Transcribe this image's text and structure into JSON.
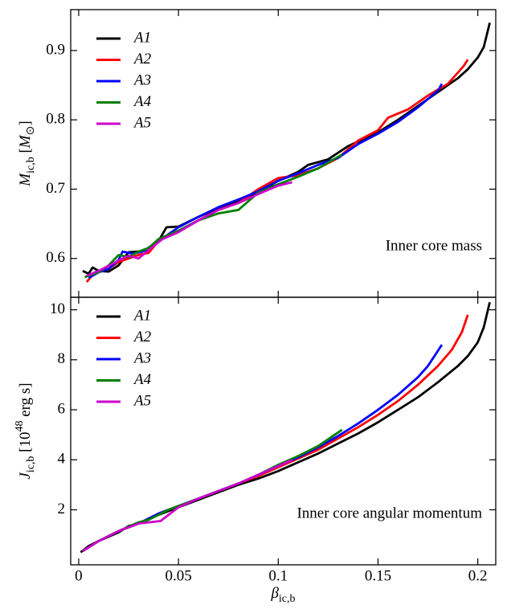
{
  "chart_data": [
    {
      "type": "line",
      "annotation": "Inner core mass",
      "ylabel": [
        {
          "text": "M",
          "font_style": "italic"
        },
        {
          "text": "ic,b",
          "baseline": "sub"
        },
        {
          "text": " ["
        },
        {
          "text": "M",
          "font_style": "italic"
        },
        {
          "text": "⊙",
          "baseline": "sub"
        },
        {
          "text": "]"
        }
      ],
      "xlim": [
        -0.004,
        0.209
      ],
      "xticks": [
        0,
        0.05,
        0.1,
        0.15,
        0.2
      ],
      "ylim": [
        0.544,
        0.959
      ],
      "yticks": [
        0.6,
        0.7,
        0.8,
        0.9
      ],
      "legend": "upper left",
      "series": [
        {
          "name": "A1",
          "color": "#000000",
          "x": [
            0.002,
            0.005,
            0.007,
            0.01,
            0.015,
            0.02,
            0.025,
            0.03,
            0.035,
            0.04,
            0.044,
            0.05,
            0.06,
            0.07,
            0.08,
            0.09,
            0.1,
            0.11,
            0.115,
            0.125,
            0.135,
            0.15,
            0.16,
            0.17,
            0.18,
            0.19,
            0.195,
            0.2,
            0.203,
            0.206
          ],
          "values": [
            0.582,
            0.578,
            0.587,
            0.582,
            0.581,
            0.59,
            0.609,
            0.61,
            0.612,
            0.625,
            0.645,
            0.646,
            0.66,
            0.672,
            0.683,
            0.695,
            0.712,
            0.725,
            0.735,
            0.743,
            0.762,
            0.782,
            0.8,
            0.82,
            0.84,
            0.86,
            0.873,
            0.89,
            0.905,
            0.94
          ]
        },
        {
          "name": "A2",
          "color": "#ff0000",
          "x": [
            0.004,
            0.008,
            0.015,
            0.02,
            0.025,
            0.03,
            0.035,
            0.04,
            0.05,
            0.06,
            0.07,
            0.08,
            0.09,
            0.1,
            0.11,
            0.12,
            0.13,
            0.14,
            0.15,
            0.155,
            0.165,
            0.175,
            0.185,
            0.19,
            0.193,
            0.195
          ],
          "values": [
            0.566,
            0.58,
            0.585,
            0.595,
            0.6,
            0.605,
            0.608,
            0.625,
            0.64,
            0.655,
            0.67,
            0.68,
            0.7,
            0.716,
            0.72,
            0.73,
            0.745,
            0.77,
            0.785,
            0.803,
            0.815,
            0.835,
            0.852,
            0.868,
            0.878,
            0.887
          ]
        },
        {
          "name": "A3",
          "color": "#0000ff",
          "x": [
            0.005,
            0.01,
            0.015,
            0.02,
            0.022,
            0.027,
            0.032,
            0.04,
            0.05,
            0.06,
            0.07,
            0.08,
            0.09,
            0.1,
            0.11,
            0.12,
            0.13,
            0.14,
            0.15,
            0.16,
            0.17,
            0.18,
            0.182
          ],
          "values": [
            0.572,
            0.58,
            0.585,
            0.598,
            0.61,
            0.607,
            0.61,
            0.625,
            0.645,
            0.66,
            0.674,
            0.685,
            0.697,
            0.712,
            0.723,
            0.735,
            0.745,
            0.765,
            0.78,
            0.797,
            0.818,
            0.842,
            0.852
          ]
        },
        {
          "name": "A4",
          "color": "#008000",
          "x": [
            0.003,
            0.01,
            0.015,
            0.02,
            0.025,
            0.03,
            0.035,
            0.04,
            0.05,
            0.06,
            0.07,
            0.08,
            0.09,
            0.1,
            0.11,
            0.12,
            0.132
          ],
          "values": [
            0.573,
            0.58,
            0.59,
            0.605,
            0.602,
            0.61,
            0.615,
            0.628,
            0.64,
            0.655,
            0.665,
            0.67,
            0.695,
            0.707,
            0.718,
            0.73,
            0.75
          ]
        },
        {
          "name": "A5",
          "color": "#cc00cc",
          "x": [
            0.004,
            0.01,
            0.02,
            0.025,
            0.03,
            0.035,
            0.042,
            0.05,
            0.06,
            0.07,
            0.08,
            0.09,
            0.1,
            0.107
          ],
          "values": [
            0.575,
            0.582,
            0.597,
            0.604,
            0.6,
            0.612,
            0.628,
            0.638,
            0.655,
            0.67,
            0.68,
            0.693,
            0.705,
            0.71
          ]
        }
      ]
    },
    {
      "type": "line",
      "annotation": "Inner core angular momentum",
      "ylabel": [
        {
          "text": "J",
          "font_style": "italic"
        },
        {
          "text": "ic,b",
          "baseline": "sub"
        },
        {
          "text": " [10"
        },
        {
          "text": "48",
          "baseline": "super"
        },
        {
          "text": " erg s]"
        }
      ],
      "xlabel": [
        {
          "text": "β",
          "font_style": "italic"
        },
        {
          "text": "ic,b",
          "baseline": "sub"
        }
      ],
      "xlim": [
        -0.004,
        0.209
      ],
      "xticks": [
        0,
        0.05,
        0.1,
        0.15,
        0.2
      ],
      "ylim": [
        -0.2,
        10.5
      ],
      "yticks": [
        2,
        4,
        6,
        8,
        10
      ],
      "legend": "upper left",
      "series": [
        {
          "name": "A1",
          "color": "#000000",
          "x": [
            0.001,
            0.005,
            0.01,
            0.02,
            0.025,
            0.03,
            0.04,
            0.05,
            0.06,
            0.07,
            0.08,
            0.09,
            0.1,
            0.11,
            0.12,
            0.13,
            0.14,
            0.15,
            0.16,
            0.17,
            0.18,
            0.19,
            0.195,
            0.2,
            0.203,
            0.206
          ],
          "values": [
            0.3,
            0.55,
            0.75,
            1.1,
            1.35,
            1.45,
            1.8,
            2.1,
            2.4,
            2.7,
            3.0,
            3.25,
            3.55,
            3.9,
            4.25,
            4.65,
            5.05,
            5.5,
            6.0,
            6.5,
            7.1,
            7.75,
            8.15,
            8.7,
            9.3,
            10.3
          ]
        },
        {
          "name": "A2",
          "color": "#ff0000",
          "x": [
            0.002,
            0.01,
            0.02,
            0.03,
            0.04,
            0.05,
            0.06,
            0.07,
            0.08,
            0.09,
            0.1,
            0.11,
            0.12,
            0.13,
            0.14,
            0.15,
            0.16,
            0.17,
            0.18,
            0.187,
            0.192,
            0.195
          ],
          "values": [
            0.35,
            0.75,
            1.15,
            1.45,
            1.85,
            2.15,
            2.45,
            2.75,
            3.05,
            3.35,
            3.7,
            4.05,
            4.4,
            4.85,
            5.3,
            5.8,
            6.35,
            7.0,
            7.75,
            8.4,
            9.1,
            9.8
          ]
        },
        {
          "name": "A3",
          "color": "#0000ff",
          "x": [
            0.002,
            0.01,
            0.02,
            0.03,
            0.04,
            0.05,
            0.06,
            0.07,
            0.08,
            0.09,
            0.1,
            0.11,
            0.12,
            0.13,
            0.14,
            0.15,
            0.16,
            0.17,
            0.175,
            0.182
          ],
          "values": [
            0.35,
            0.75,
            1.15,
            1.45,
            1.85,
            2.15,
            2.45,
            2.75,
            3.05,
            3.4,
            3.75,
            4.1,
            4.5,
            4.95,
            5.45,
            6.0,
            6.6,
            7.3,
            7.75,
            8.6
          ]
        },
        {
          "name": "A4",
          "color": "#008000",
          "x": [
            0.002,
            0.01,
            0.02,
            0.03,
            0.035,
            0.045,
            0.05,
            0.06,
            0.07,
            0.08,
            0.09,
            0.1,
            0.11,
            0.12,
            0.132
          ],
          "values": [
            0.35,
            0.75,
            1.15,
            1.5,
            1.6,
            2.0,
            2.15,
            2.45,
            2.75,
            3.05,
            3.4,
            3.8,
            4.15,
            4.55,
            5.2
          ]
        },
        {
          "name": "A5",
          "color": "#cc00cc",
          "x": [
            0.002,
            0.01,
            0.02,
            0.03,
            0.041,
            0.05,
            0.06,
            0.07,
            0.08,
            0.09,
            0.1,
            0.107
          ],
          "values": [
            0.35,
            0.75,
            1.15,
            1.45,
            1.55,
            2.1,
            2.45,
            2.75,
            3.05,
            3.4,
            3.75,
            4.0
          ]
        }
      ]
    }
  ]
}
